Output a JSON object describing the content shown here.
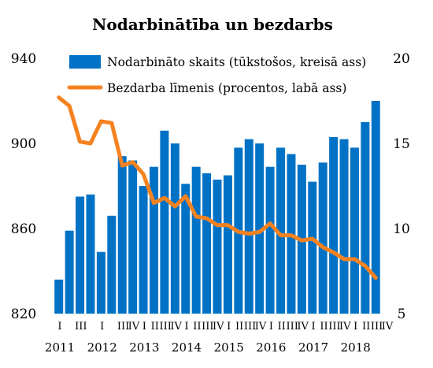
{
  "chart_data": {
    "type": "bar+line",
    "title": "Nodarbinātība un bezdarbs",
    "colors": {
      "bar": "#0072c6",
      "line": "#f58220"
    },
    "quarter_labels": [
      "I",
      "",
      "III",
      "",
      "I",
      "",
      "III",
      "IV",
      "I",
      "II",
      "III",
      "IV",
      "I",
      "II",
      "III",
      "IV",
      "I",
      "II",
      "III",
      "IV",
      "I",
      "II",
      "III",
      "IV",
      "I",
      "II",
      "III",
      "IV",
      "I",
      "II",
      "III",
      "IV"
    ],
    "year_labels": [
      {
        "label": "2011",
        "quarter_index": 0
      },
      {
        "label": "2012",
        "quarter_index": 4
      },
      {
        "label": "2013",
        "quarter_index": 8
      },
      {
        "label": "2014",
        "quarter_index": 12
      },
      {
        "label": "2015",
        "quarter_index": 16
      },
      {
        "label": "2016",
        "quarter_index": 20
      },
      {
        "label": "2017",
        "quarter_index": 24
      },
      {
        "label": "2018",
        "quarter_index": 28
      }
    ],
    "left_axis": {
      "min": 820,
      "max": 940,
      "ticks": [
        "820",
        "860",
        "900",
        "940"
      ]
    },
    "right_axis": {
      "min": 5,
      "max": 20,
      "ticks": [
        "5",
        "10",
        "15",
        "20"
      ]
    },
    "series": [
      {
        "name": "Nodarbināto skaits (tūkstošos, kreisā ass)",
        "type": "bar",
        "axis": "left",
        "values": [
          836,
          859,
          875,
          876,
          849,
          866,
          894,
          892,
          880,
          889,
          906,
          900,
          881,
          889,
          886,
          883,
          885,
          898,
          902,
          900,
          889,
          898,
          895,
          890,
          882,
          891,
          903,
          902,
          898,
          910,
          920
        ]
      },
      {
        "name": "Bezdarba līmenis (procentos, labā ass)",
        "type": "line",
        "axis": "right",
        "values": [
          17.7,
          17.2,
          15.1,
          15.0,
          16.3,
          16.2,
          13.7,
          13.9,
          13.2,
          11.5,
          11.8,
          11.3,
          11.9,
          10.7,
          10.6,
          10.2,
          10.2,
          9.8,
          9.7,
          9.8,
          10.3,
          9.6,
          9.6,
          9.3,
          9.4,
          8.9,
          8.6,
          8.2,
          8.2,
          7.8,
          7.1
        ]
      }
    ]
  }
}
